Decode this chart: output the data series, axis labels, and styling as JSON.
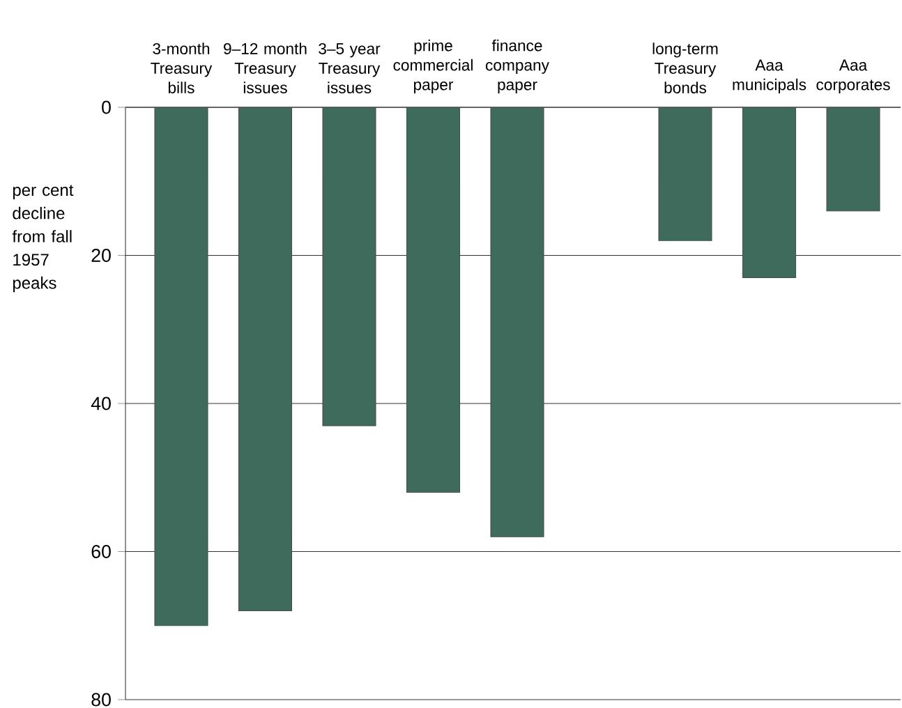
{
  "chart_data": {
    "type": "bar",
    "ylabel": "per cent decline from fall 1957 peaks",
    "categories": [
      "3-month Treasury bills",
      "9–12 month Treasury issues",
      "3–5 year Treasury issues",
      "prime commercial paper",
      "finance company paper",
      null,
      "long-term Treasury bonds",
      "Aaa municipals",
      "Aaa corporates"
    ],
    "values": [
      70,
      68,
      43,
      52,
      58,
      null,
      18,
      23,
      14
    ],
    "color": "#3f6b5c",
    "ylim": [
      80,
      0
    ],
    "yticks": [
      0,
      20,
      40,
      60,
      80
    ],
    "grid": "y"
  }
}
